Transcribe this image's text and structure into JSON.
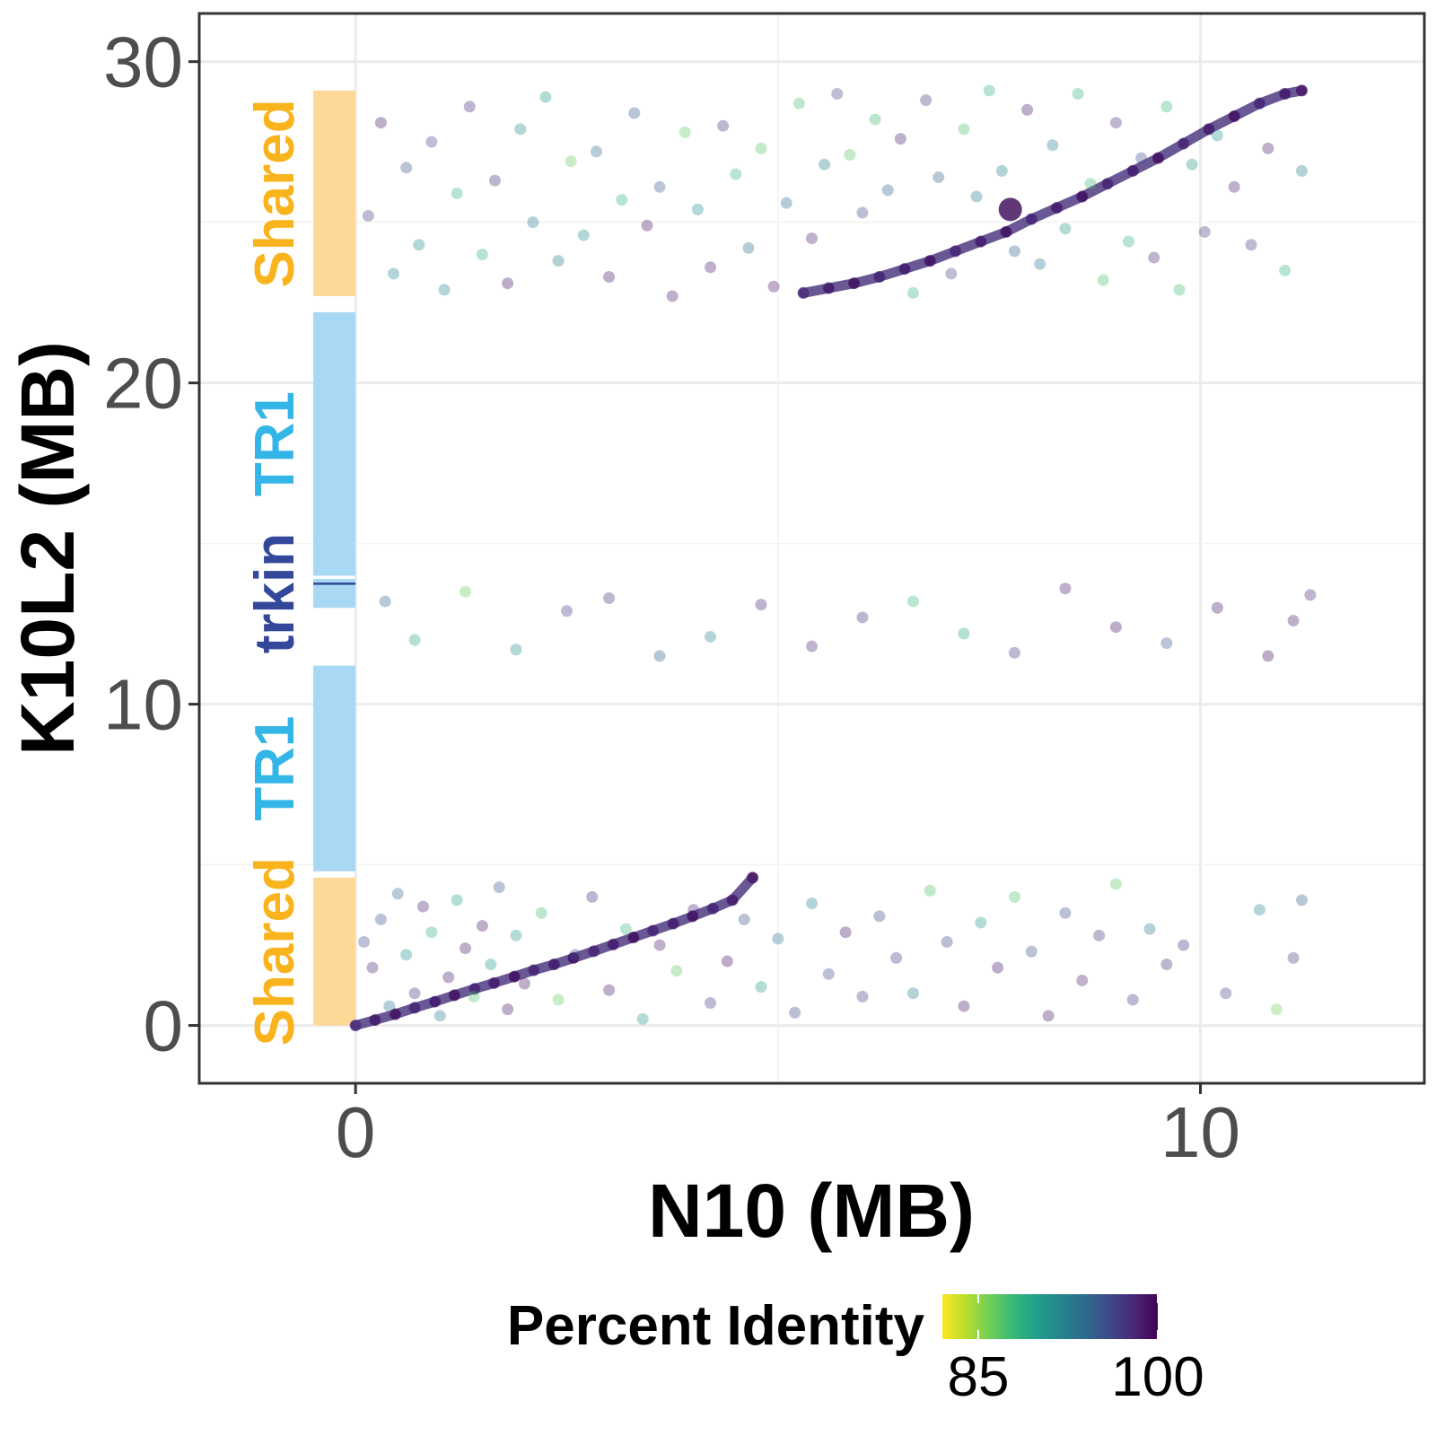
{
  "chart_data": {
    "type": "scatter",
    "xlabel": "N10 (MB)",
    "ylabel": "K10L2 (MB)",
    "xlim": [
      -1.85,
      12.65
    ],
    "ylim": [
      -1.8,
      31.5
    ],
    "x_ticks": [
      0,
      10
    ],
    "y_ticks": [
      0,
      10,
      20,
      30
    ],
    "x_tick_labels": [
      "0",
      "10"
    ],
    "y_tick_labels": [
      "0",
      "10",
      "20",
      "30"
    ],
    "grid": true,
    "colorbar": {
      "title": "Percent Identity",
      "range": [
        82,
        100
      ],
      "tick_values": [
        85,
        100
      ],
      "tick_labels": [
        "85",
        "100"
      ],
      "palette": [
        "#fde725",
        "#b5de2b",
        "#6ece58",
        "#35b779",
        "#1f9e89",
        "#26828e",
        "#31688e",
        "#3e4989",
        "#482878",
        "#440154"
      ],
      "placement": "bottom"
    },
    "annotation_bands": [
      {
        "label": "Shared",
        "y_start": 0,
        "y_end": 4.6,
        "color": "#fdd897",
        "text_color": "#f9b31d"
      },
      {
        "label": "TR1",
        "y_start": 4.8,
        "y_end": 11.2,
        "color": "#a8d8f3",
        "text_color": "#33b5e8"
      },
      {
        "label": "trkin",
        "y_start": 13.0,
        "y_end": 13.9,
        "color": "#a8d8f3",
        "text_color": "#33479b"
      },
      {
        "label": "TR1",
        "y_start": 14.0,
        "y_end": 22.2,
        "color": "#a8d8f3",
        "text_color": "#33b5e8"
      },
      {
        "label": "Shared",
        "y_start": 22.7,
        "y_end": 29.1,
        "color": "#fdd897",
        "text_color": "#f9b31d"
      }
    ],
    "series": [
      {
        "kind": "diagonal",
        "points": [
          [
            0.0,
            0.0
          ],
          [
            0.23,
            0.17
          ],
          [
            0.47,
            0.35
          ],
          [
            0.7,
            0.55
          ],
          [
            0.94,
            0.74
          ],
          [
            1.17,
            0.94
          ],
          [
            1.41,
            1.14
          ],
          [
            1.64,
            1.32
          ],
          [
            1.88,
            1.52
          ],
          [
            2.11,
            1.72
          ],
          [
            2.35,
            1.9
          ],
          [
            2.58,
            2.1
          ],
          [
            2.82,
            2.31
          ],
          [
            3.05,
            2.52
          ],
          [
            3.29,
            2.74
          ],
          [
            3.52,
            2.95
          ],
          [
            3.76,
            3.17
          ],
          [
            3.99,
            3.4
          ],
          [
            4.23,
            3.64
          ],
          [
            4.46,
            3.9
          ],
          [
            4.7,
            4.6
          ],
          [
            5.3,
            22.8
          ],
          [
            5.6,
            22.95
          ],
          [
            5.9,
            23.1
          ],
          [
            6.2,
            23.3
          ],
          [
            6.5,
            23.55
          ],
          [
            6.8,
            23.8
          ],
          [
            7.1,
            24.1
          ],
          [
            7.4,
            24.4
          ],
          [
            7.7,
            24.7
          ],
          [
            8.0,
            25.1
          ],
          [
            8.3,
            25.45
          ],
          [
            8.6,
            25.8
          ],
          [
            8.9,
            26.2
          ],
          [
            9.2,
            26.6
          ],
          [
            9.5,
            27.0
          ],
          [
            9.8,
            27.45
          ],
          [
            10.1,
            27.9
          ],
          [
            10.4,
            28.3
          ],
          [
            10.7,
            28.7
          ],
          [
            11.0,
            29.0
          ],
          [
            11.2,
            29.1
          ]
        ]
      },
      {
        "kind": "scattered",
        "points": [
          [
            0.1,
            2.6
          ],
          [
            0.2,
            1.8
          ],
          [
            0.3,
            3.3
          ],
          [
            0.4,
            0.6
          ],
          [
            0.5,
            4.1
          ],
          [
            0.6,
            2.2
          ],
          [
            0.7,
            1.0
          ],
          [
            0.8,
            3.7
          ],
          [
            0.9,
            2.9
          ],
          [
            1.0,
            0.3
          ],
          [
            1.1,
            1.5
          ],
          [
            1.2,
            3.9
          ],
          [
            1.3,
            2.4
          ],
          [
            1.4,
            0.9
          ],
          [
            1.5,
            3.1
          ],
          [
            1.6,
            1.9
          ],
          [
            1.7,
            4.3
          ],
          [
            1.8,
            0.5
          ],
          [
            1.9,
            2.8
          ],
          [
            2.0,
            1.3
          ],
          [
            2.2,
            3.5
          ],
          [
            2.4,
            0.8
          ],
          [
            2.6,
            2.2
          ],
          [
            2.8,
            4.0
          ],
          [
            3.0,
            1.1
          ],
          [
            3.2,
            3.0
          ],
          [
            3.4,
            0.2
          ],
          [
            3.6,
            2.5
          ],
          [
            3.8,
            1.7
          ],
          [
            4.0,
            3.6
          ],
          [
            4.2,
            0.7
          ],
          [
            4.4,
            2.0
          ],
          [
            4.6,
            3.3
          ],
          [
            4.8,
            1.2
          ],
          [
            5.0,
            2.7
          ],
          [
            5.2,
            0.4
          ],
          [
            5.4,
            3.8
          ],
          [
            5.6,
            1.6
          ],
          [
            5.8,
            2.9
          ],
          [
            6.0,
            0.9
          ],
          [
            6.2,
            3.4
          ],
          [
            6.4,
            2.1
          ],
          [
            6.6,
            1.0
          ],
          [
            6.8,
            4.2
          ],
          [
            7.0,
            2.6
          ],
          [
            7.2,
            0.6
          ],
          [
            7.4,
            3.2
          ],
          [
            7.6,
            1.8
          ],
          [
            7.8,
            4.0
          ],
          [
            8.0,
            2.3
          ],
          [
            8.2,
            0.3
          ],
          [
            8.4,
            3.5
          ],
          [
            8.6,
            1.4
          ],
          [
            8.8,
            2.8
          ],
          [
            9.0,
            4.4
          ],
          [
            9.2,
            0.8
          ],
          [
            9.4,
            3.0
          ],
          [
            9.6,
            1.9
          ],
          [
            9.8,
            2.5
          ],
          [
            10.3,
            1.0
          ],
          [
            10.7,
            3.6
          ],
          [
            10.9,
            0.5
          ],
          [
            11.1,
            2.1
          ],
          [
            11.2,
            3.9
          ],
          [
            0.15,
            25.2
          ],
          [
            0.3,
            28.1
          ],
          [
            0.45,
            23.4
          ],
          [
            0.6,
            26.7
          ],
          [
            0.75,
            24.3
          ],
          [
            0.9,
            27.5
          ],
          [
            1.05,
            22.9
          ],
          [
            1.2,
            25.9
          ],
          [
            1.35,
            28.6
          ],
          [
            1.5,
            24.0
          ],
          [
            1.65,
            26.3
          ],
          [
            1.8,
            23.1
          ],
          [
            1.95,
            27.9
          ],
          [
            2.1,
            25.0
          ],
          [
            2.25,
            28.9
          ],
          [
            2.4,
            23.8
          ],
          [
            2.55,
            26.9
          ],
          [
            2.7,
            24.6
          ],
          [
            2.85,
            27.2
          ],
          [
            3.0,
            23.3
          ],
          [
            3.15,
            25.7
          ],
          [
            3.3,
            28.4
          ],
          [
            3.45,
            24.9
          ],
          [
            3.6,
            26.1
          ],
          [
            3.75,
            22.7
          ],
          [
            3.9,
            27.8
          ],
          [
            4.05,
            25.4
          ],
          [
            4.2,
            23.6
          ],
          [
            4.35,
            28.0
          ],
          [
            4.5,
            26.5
          ],
          [
            4.65,
            24.2
          ],
          [
            4.8,
            27.3
          ],
          [
            4.95,
            23.0
          ],
          [
            5.1,
            25.6
          ],
          [
            5.25,
            28.7
          ],
          [
            5.4,
            24.5
          ],
          [
            5.55,
            26.8
          ],
          [
            5.7,
            29.0
          ],
          [
            5.85,
            27.1
          ],
          [
            6.0,
            25.3
          ],
          [
            6.15,
            28.2
          ],
          [
            6.3,
            26.0
          ],
          [
            6.45,
            27.6
          ],
          [
            6.6,
            22.8
          ],
          [
            6.75,
            28.8
          ],
          [
            6.9,
            26.4
          ],
          [
            7.05,
            23.4
          ],
          [
            7.2,
            27.9
          ],
          [
            7.35,
            25.8
          ],
          [
            7.5,
            29.1
          ],
          [
            7.65,
            26.6
          ],
          [
            7.8,
            24.1
          ],
          [
            7.95,
            28.5
          ],
          [
            8.1,
            23.7
          ],
          [
            8.25,
            27.4
          ],
          [
            8.4,
            24.8
          ],
          [
            8.55,
            29.0
          ],
          [
            8.7,
            26.2
          ],
          [
            8.85,
            23.2
          ],
          [
            9.0,
            28.1
          ],
          [
            9.15,
            24.4
          ],
          [
            9.3,
            27.0
          ],
          [
            9.45,
            23.9
          ],
          [
            9.6,
            28.6
          ],
          [
            9.75,
            22.9
          ],
          [
            9.9,
            26.8
          ],
          [
            10.05,
            24.7
          ],
          [
            10.2,
            27.7
          ],
          [
            10.4,
            26.1
          ],
          [
            10.6,
            24.3
          ],
          [
            10.8,
            27.3
          ],
          [
            11.0,
            23.5
          ],
          [
            11.2,
            26.6
          ],
          [
            0.35,
            13.2
          ],
          [
            0.7,
            12.0
          ],
          [
            1.3,
            13.5
          ],
          [
            1.9,
            11.7
          ],
          [
            2.5,
            12.9
          ],
          [
            3.0,
            13.3
          ],
          [
            3.6,
            11.5
          ],
          [
            4.2,
            12.1
          ],
          [
            4.8,
            13.1
          ],
          [
            5.4,
            11.8
          ],
          [
            6.0,
            12.7
          ],
          [
            6.6,
            13.2
          ],
          [
            7.2,
            12.2
          ],
          [
            7.8,
            11.6
          ],
          [
            8.4,
            13.6
          ],
          [
            9.0,
            12.4
          ],
          [
            9.6,
            11.9
          ],
          [
            10.2,
            13.0
          ],
          [
            10.8,
            11.5
          ],
          [
            11.1,
            12.6
          ],
          [
            11.3,
            13.4
          ]
        ]
      }
    ]
  }
}
